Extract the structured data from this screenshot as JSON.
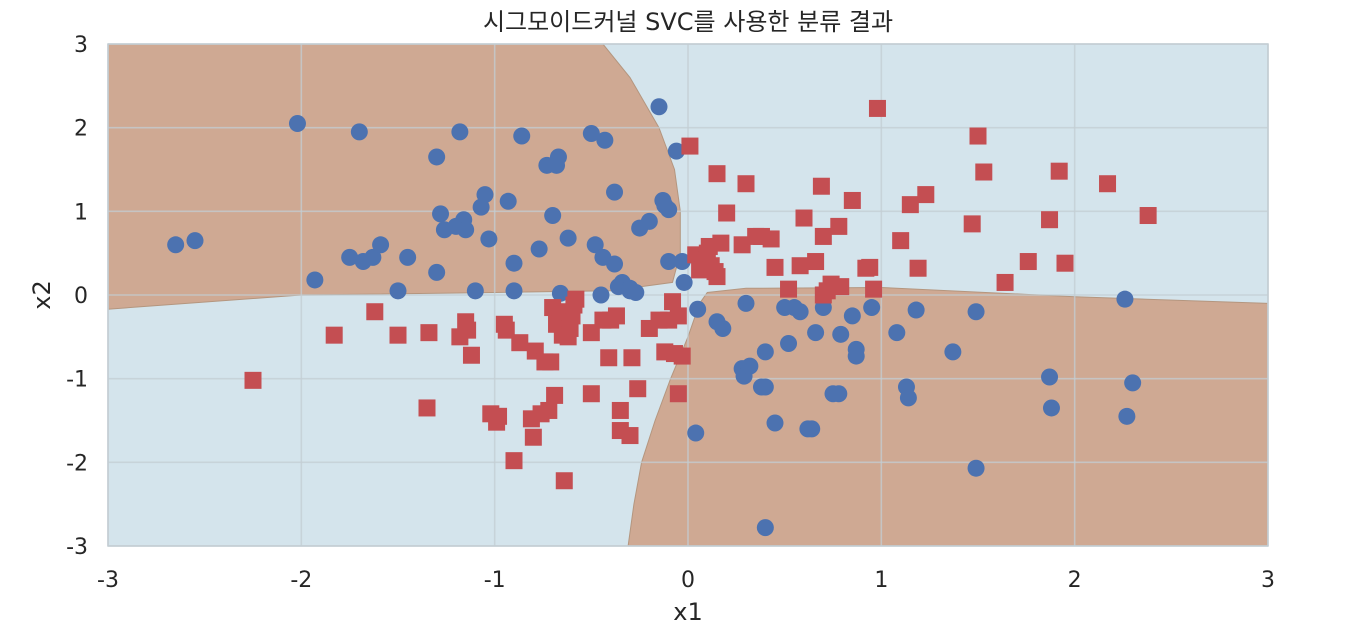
{
  "chart_data": {
    "type": "scatter",
    "title": "시그모이드커널 SVC를 사용한 분류 결과",
    "xlabel": "x1",
    "ylabel": "x2",
    "xlim": [
      -3,
      3
    ],
    "ylim": [
      -3,
      3
    ],
    "xticks": [
      -3,
      -2,
      -1,
      0,
      1,
      2,
      3
    ],
    "yticks": [
      -3,
      -2,
      -1,
      0,
      1,
      2,
      3
    ],
    "xtick_labels": [
      "-3",
      "-2",
      "-1",
      "0",
      "1",
      "2",
      "3"
    ],
    "ytick_labels": [
      "-3",
      "-2",
      "-1",
      "0",
      "1",
      "2",
      "3"
    ],
    "grid": true,
    "colors": {
      "region_a": "#cfa993",
      "region_b": "#d4e4ec",
      "circle": "#4c72b0",
      "square": "#c44e52",
      "grid": "#c3cdd3",
      "boundary": "#b4967f"
    },
    "regions": {
      "brown_top_left": [
        [
          -3,
          3
        ],
        [
          -0.44,
          3
        ],
        [
          -0.3,
          2.6
        ],
        [
          -0.15,
          2.0
        ],
        [
          -0.07,
          1.5
        ],
        [
          -0.04,
          1.0
        ],
        [
          -0.04,
          0.5
        ],
        [
          -0.08,
          0.15
        ],
        [
          -0.4,
          0.05
        ],
        [
          -1.0,
          0.03
        ],
        [
          -2.0,
          0.0
        ],
        [
          -3,
          -0.17
        ]
      ],
      "brown_bottom_right": [
        [
          3,
          -0.1
        ],
        [
          2.0,
          -0.02
        ],
        [
          1.0,
          0.09
        ],
        [
          0.3,
          0.08
        ],
        [
          0.1,
          0.03
        ],
        [
          0.06,
          -0.1
        ],
        [
          0.0,
          -0.5
        ],
        [
          -0.09,
          -1.0
        ],
        [
          -0.17,
          -1.5
        ],
        [
          -0.24,
          -2.0
        ],
        [
          -0.28,
          -2.5
        ],
        [
          -0.31,
          -3
        ],
        [
          3,
          -3
        ]
      ]
    },
    "series": [
      {
        "marker": "circle",
        "points": [
          [
            -2.65,
            0.6
          ],
          [
            -2.55,
            0.65
          ],
          [
            -2.02,
            2.05
          ],
          [
            -1.93,
            0.18
          ],
          [
            -1.75,
            0.45
          ],
          [
            -1.7,
            1.95
          ],
          [
            -1.68,
            0.4
          ],
          [
            -1.63,
            0.45
          ],
          [
            -1.59,
            0.6
          ],
          [
            -1.5,
            0.05
          ],
          [
            -1.45,
            0.45
          ],
          [
            -1.3,
            1.65
          ],
          [
            -1.3,
            0.27
          ],
          [
            -1.28,
            0.97
          ],
          [
            -1.26,
            0.78
          ],
          [
            -1.2,
            0.82
          ],
          [
            -1.18,
            1.95
          ],
          [
            -1.16,
            0.9
          ],
          [
            -1.15,
            0.78
          ],
          [
            -1.1,
            0.05
          ],
          [
            -1.07,
            1.05
          ],
          [
            -1.05,
            1.2
          ],
          [
            -1.03,
            0.67
          ],
          [
            -0.93,
            1.12
          ],
          [
            -0.9,
            0.38
          ],
          [
            -0.9,
            0.05
          ],
          [
            -0.86,
            1.9
          ],
          [
            -0.77,
            0.55
          ],
          [
            -0.73,
            1.55
          ],
          [
            -0.7,
            0.95
          ],
          [
            -0.68,
            1.55
          ],
          [
            -0.67,
            1.65
          ],
          [
            -0.66,
            0.02
          ],
          [
            -0.62,
            0.68
          ],
          [
            -0.5,
            1.93
          ],
          [
            -0.48,
            0.6
          ],
          [
            -0.44,
            0.45
          ],
          [
            -0.45,
            0.0
          ],
          [
            -0.43,
            1.85
          ],
          [
            -0.38,
            1.23
          ],
          [
            -0.38,
            0.37
          ],
          [
            -0.36,
            0.1
          ],
          [
            -0.34,
            0.15
          ],
          [
            -0.3,
            0.08
          ],
          [
            -0.3,
            0.05
          ],
          [
            -0.27,
            0.03
          ],
          [
            -0.25,
            0.8
          ],
          [
            -0.2,
            0.88
          ],
          [
            -0.15,
            2.25
          ],
          [
            -0.13,
            1.13
          ],
          [
            -0.12,
            1.07
          ],
          [
            -0.1,
            1.02
          ],
          [
            -0.1,
            0.4
          ],
          [
            -0.06,
            1.72
          ],
          [
            -0.03,
            0.4
          ],
          [
            -0.02,
            0.15
          ],
          [
            0.05,
            -0.17
          ],
          [
            0.04,
            -1.65
          ],
          [
            0.15,
            -0.32
          ],
          [
            0.18,
            -0.4
          ],
          [
            0.28,
            -0.88
          ],
          [
            0.29,
            -0.97
          ],
          [
            0.3,
            -0.1
          ],
          [
            0.32,
            -0.85
          ],
          [
            0.38,
            -1.1
          ],
          [
            0.4,
            -1.1
          ],
          [
            0.4,
            -0.68
          ],
          [
            0.4,
            -2.78
          ],
          [
            0.45,
            -1.53
          ],
          [
            0.5,
            -0.15
          ],
          [
            0.52,
            -0.58
          ],
          [
            0.55,
            -0.15
          ],
          [
            0.58,
            -0.2
          ],
          [
            0.62,
            -1.6
          ],
          [
            0.64,
            -1.6
          ],
          [
            0.66,
            -0.45
          ],
          [
            0.7,
            -0.15
          ],
          [
            0.75,
            -1.18
          ],
          [
            0.78,
            -1.18
          ],
          [
            0.79,
            -0.47
          ],
          [
            0.85,
            -0.25
          ],
          [
            0.87,
            -0.65
          ],
          [
            0.87,
            -0.73
          ],
          [
            0.95,
            -0.15
          ],
          [
            1.08,
            -0.45
          ],
          [
            1.13,
            -1.1
          ],
          [
            1.14,
            -1.23
          ],
          [
            1.18,
            -0.18
          ],
          [
            1.37,
            -0.68
          ],
          [
            1.49,
            -0.2
          ],
          [
            1.49,
            -2.07
          ],
          [
            1.87,
            -0.98
          ],
          [
            1.88,
            -1.35
          ],
          [
            2.26,
            -0.05
          ],
          [
            2.27,
            -1.45
          ],
          [
            2.3,
            -1.05
          ]
        ]
      },
      {
        "marker": "square",
        "points": [
          [
            -2.25,
            -1.02
          ],
          [
            -1.83,
            -0.48
          ],
          [
            -1.62,
            -0.2
          ],
          [
            -1.5,
            -0.48
          ],
          [
            -1.35,
            -1.35
          ],
          [
            -1.34,
            -0.45
          ],
          [
            -1.18,
            -0.5
          ],
          [
            -1.15,
            -0.32
          ],
          [
            -1.14,
            -0.42
          ],
          [
            -1.12,
            -0.72
          ],
          [
            -1.02,
            -1.42
          ],
          [
            -0.99,
            -1.52
          ],
          [
            -0.98,
            -1.45
          ],
          [
            -0.95,
            -0.35
          ],
          [
            -0.94,
            -0.42
          ],
          [
            -0.9,
            -1.98
          ],
          [
            -0.87,
            -0.57
          ],
          [
            -0.81,
            -1.48
          ],
          [
            -0.8,
            -1.7
          ],
          [
            -0.79,
            -0.67
          ],
          [
            -0.76,
            -1.42
          ],
          [
            -0.74,
            -0.8
          ],
          [
            -0.72,
            -1.38
          ],
          [
            -0.71,
            -0.8
          ],
          [
            -0.69,
            -1.2
          ],
          [
            -0.7,
            -0.15
          ],
          [
            -0.68,
            -0.35
          ],
          [
            -0.66,
            -0.2
          ],
          [
            -0.65,
            -0.48
          ],
          [
            -0.64,
            -2.22
          ],
          [
            -0.62,
            -0.5
          ],
          [
            -0.61,
            -0.4
          ],
          [
            -0.6,
            -0.25
          ],
          [
            -0.59,
            -0.12
          ],
          [
            -0.58,
            -0.05
          ],
          [
            -0.5,
            -0.45
          ],
          [
            -0.5,
            -1.18
          ],
          [
            -0.44,
            -0.3
          ],
          [
            -0.41,
            -0.75
          ],
          [
            -0.4,
            -0.3
          ],
          [
            -0.37,
            -0.25
          ],
          [
            -0.35,
            -1.38
          ],
          [
            -0.35,
            -1.62
          ],
          [
            -0.3,
            -1.68
          ],
          [
            -0.29,
            -0.75
          ],
          [
            -0.26,
            -1.12
          ],
          [
            -0.2,
            -0.4
          ],
          [
            -0.15,
            -0.3
          ],
          [
            -0.12,
            -0.68
          ],
          [
            -0.1,
            -0.3
          ],
          [
            -0.08,
            -0.08
          ],
          [
            -0.07,
            -0.7
          ],
          [
            -0.05,
            -1.18
          ],
          [
            -0.05,
            -0.25
          ],
          [
            -0.03,
            -0.73
          ],
          [
            0.01,
            1.78
          ],
          [
            0.04,
            0.48
          ],
          [
            0.06,
            0.3
          ],
          [
            0.08,
            0.42
          ],
          [
            0.1,
            0.5
          ],
          [
            0.11,
            0.58
          ],
          [
            0.12,
            0.35
          ],
          [
            0.14,
            0.28
          ],
          [
            0.15,
            1.45
          ],
          [
            0.15,
            0.22
          ],
          [
            0.17,
            0.62
          ],
          [
            0.2,
            0.98
          ],
          [
            0.28,
            0.6
          ],
          [
            0.3,
            1.33
          ],
          [
            0.35,
            0.7
          ],
          [
            0.38,
            0.7
          ],
          [
            0.43,
            0.67
          ],
          [
            0.45,
            0.33
          ],
          [
            0.52,
            0.07
          ],
          [
            0.58,
            0.35
          ],
          [
            0.6,
            0.92
          ],
          [
            0.66,
            0.4
          ],
          [
            0.69,
            1.3
          ],
          [
            0.7,
            0.7
          ],
          [
            0.7,
            0.0
          ],
          [
            0.72,
            0.05
          ],
          [
            0.74,
            0.13
          ],
          [
            0.78,
            0.82
          ],
          [
            0.79,
            0.1
          ],
          [
            0.85,
            1.13
          ],
          [
            0.92,
            0.32
          ],
          [
            0.94,
            0.33
          ],
          [
            0.96,
            0.07
          ],
          [
            0.98,
            2.23
          ],
          [
            1.1,
            0.65
          ],
          [
            1.15,
            1.08
          ],
          [
            1.19,
            0.32
          ],
          [
            1.23,
            1.2
          ],
          [
            1.47,
            0.85
          ],
          [
            1.5,
            1.9
          ],
          [
            1.53,
            1.47
          ],
          [
            1.64,
            0.15
          ],
          [
            1.76,
            0.4
          ],
          [
            1.87,
            0.9
          ],
          [
            1.92,
            1.48
          ],
          [
            1.95,
            0.38
          ],
          [
            2.17,
            1.33
          ],
          [
            2.38,
            0.95
          ]
        ]
      }
    ]
  }
}
